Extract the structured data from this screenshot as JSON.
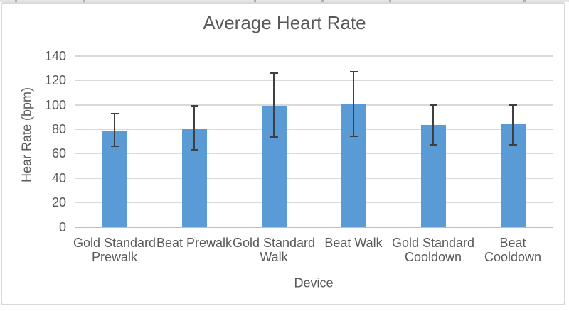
{
  "chart": {
    "title": "Average Heart Rate"
  },
  "chart_data": {
    "type": "bar",
    "title": "Average Heart Rate",
    "xlabel": "Device",
    "ylabel": "Hear Rate (bpm)",
    "categories": [
      "Gold Standard\nPrewalk",
      "Beat Prewalk",
      "Gold Standard\nWalk",
      "Beat Walk",
      "Gold Standard\nCooldown",
      "Beat\nCooldown"
    ],
    "values": [
      79,
      80.5,
      99.5,
      100.5,
      83.5,
      84
    ],
    "error_low": [
      66,
      63,
      73.5,
      74.5,
      67,
      67.5
    ],
    "error_high": [
      93,
      99,
      126,
      127,
      100,
      100
    ],
    "ylim": [
      0,
      140
    ],
    "ytick_step": 20,
    "grid": true,
    "legend": "none",
    "bar_color": "#5b9bd5",
    "error_bar_color": "#404040",
    "gridline_color": "#d9d9d9",
    "axis_line_color": "#bfbfbf",
    "text_color": "#595959",
    "border_color": "#d9d9d9"
  },
  "decor": {
    "top_strip_ticks": [
      21,
      117,
      357,
      452,
      547,
      736
    ]
  }
}
